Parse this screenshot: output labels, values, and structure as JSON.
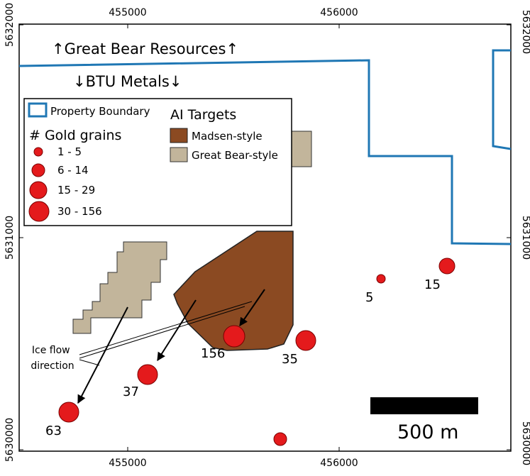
{
  "axes": {
    "x_ticks": [
      "455000",
      "456000"
    ],
    "y_ticks": [
      "5632000",
      "5631000",
      "5630000"
    ]
  },
  "regions": {
    "north": "↑Great Bear Resources↑",
    "south": "↓BTU Metals↓"
  },
  "legend": {
    "boundary_label": "Property Boundary",
    "gold_heading": "# Gold grains",
    "gold_classes": [
      "1 - 5",
      "6 - 14",
      "15 - 29",
      "30 - 156"
    ],
    "targets_heading": "AI Targets",
    "targets": [
      "Madsen-style",
      "Great Bear-style"
    ]
  },
  "samples": [
    {
      "id": "s1",
      "label": "63"
    },
    {
      "id": "s2",
      "label": "37"
    },
    {
      "id": "s3",
      "label": "156"
    },
    {
      "id": "s4",
      "label": "35"
    },
    {
      "id": "s5",
      "label": "5"
    },
    {
      "id": "s6",
      "label": "15"
    }
  ],
  "ice_flow_label": [
    "Ice flow",
    "direction"
  ],
  "scale_bar_label": "500 m",
  "colors": {
    "boundary": "#1f77b4",
    "gold_sample": "#e41a1c",
    "madsen_target": "#8b4a22",
    "great_bear_target": "#c2b59b"
  }
}
